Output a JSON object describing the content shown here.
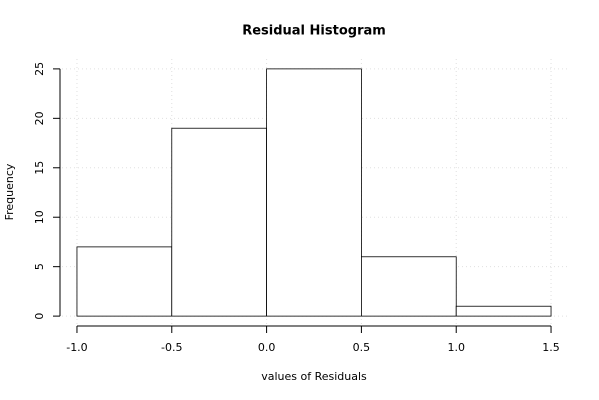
{
  "chart_data": {
    "type": "histogram",
    "title": "Residual Histogram",
    "x_label": "values of Residuals",
    "y_label": "Frequency",
    "bins": [
      -1,
      -0.5,
      0,
      0.5,
      1,
      1.5
    ],
    "values": [
      7,
      19,
      25,
      6,
      1
    ],
    "color": "#ffffff",
    "edge_color": "#000000",
    "xlim": [
      -1.1,
      1.6
    ],
    "ylim": [
      -1,
      26
    ],
    "xticks": [
      {
        "value": -1,
        "label": "-1.0"
      },
      {
        "value": -0.5,
        "label": "-0.5"
      },
      {
        "value": 0,
        "label": "0.0"
      },
      {
        "value": 0.5,
        "label": "0.5"
      },
      {
        "value": 1,
        "label": "1.0"
      },
      {
        "value": 1.5,
        "label": "1.5"
      }
    ],
    "yticks": [
      0,
      5,
      10,
      15,
      20,
      25
    ],
    "grid": true
  }
}
